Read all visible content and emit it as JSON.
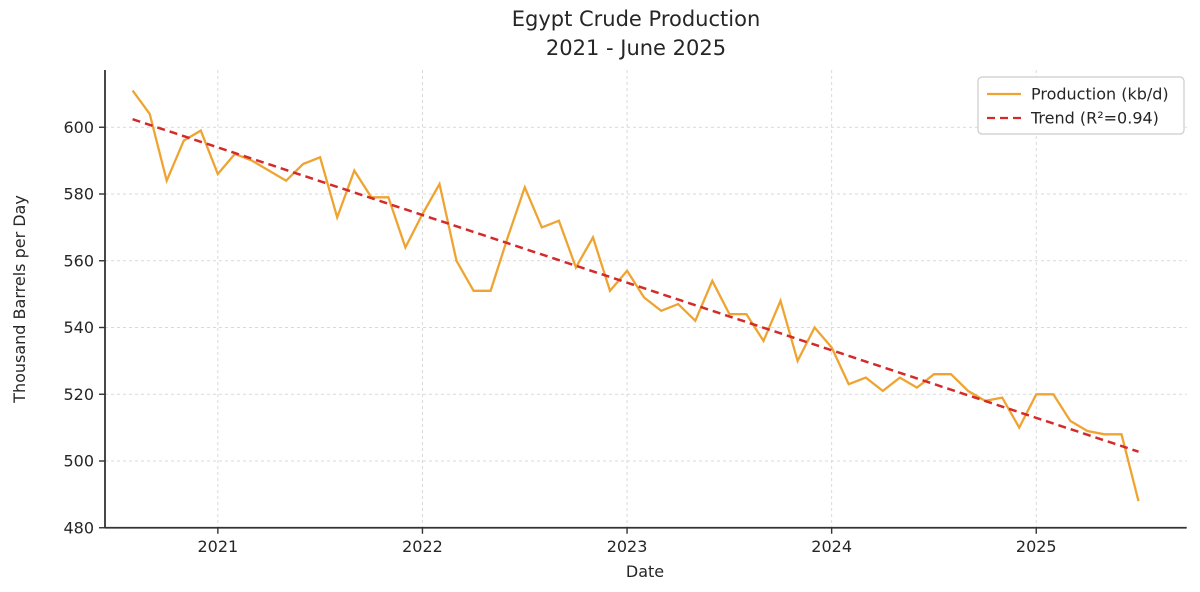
{
  "figure": {
    "title_line1": "Egypt Crude Production",
    "title_line2": "2021 - June 2025",
    "xlabel": "Date",
    "ylabel": "Thousand Barrels per Day"
  },
  "legend": {
    "position": "upper right",
    "items": [
      {
        "label": "Production (kb/d)",
        "style": "solid",
        "color": "#EFA432"
      },
      {
        "label": "Trend (R²=0.94)",
        "style": "dashed",
        "color": "#D42A2A"
      }
    ]
  },
  "colors": {
    "production_line": "#EFA432",
    "trend_line": "#D42A2A",
    "gridline": "#d9d9d9",
    "spine": "#333333",
    "text": "#262626",
    "legend_border": "#cccccc",
    "background": "#ffffff"
  },
  "chart_data": {
    "type": "line",
    "title": "Egypt Crude Production 2021 - June 2025",
    "xlabel": "Date",
    "ylabel": "Thousand Barrels per Day",
    "grid": true,
    "legend_position": "upper right",
    "x_ticks": [
      2021,
      2022,
      2023,
      2024,
      2025
    ],
    "y_ticks": [
      480,
      500,
      520,
      540,
      560,
      580,
      600
    ],
    "ylim": [
      480,
      617
    ],
    "months": [
      "2020-08",
      "2020-09",
      "2020-10",
      "2020-11",
      "2020-12",
      "2021-01",
      "2021-02",
      "2021-03",
      "2021-04",
      "2021-05",
      "2021-06",
      "2021-07",
      "2021-08",
      "2021-09",
      "2021-10",
      "2021-11",
      "2021-12",
      "2022-01",
      "2022-02",
      "2022-03",
      "2022-04",
      "2022-05",
      "2022-06",
      "2022-07",
      "2022-08",
      "2022-09",
      "2022-10",
      "2022-11",
      "2022-12",
      "2023-01",
      "2023-02",
      "2023-03",
      "2023-04",
      "2023-05",
      "2023-06",
      "2023-07",
      "2023-08",
      "2023-09",
      "2023-10",
      "2023-11",
      "2023-12",
      "2024-01",
      "2024-02",
      "2024-03",
      "2024-04",
      "2024-05",
      "2024-06",
      "2024-07",
      "2024-08",
      "2024-09",
      "2024-10",
      "2024-11",
      "2024-12",
      "2025-01",
      "2025-02",
      "2025-03",
      "2025-04",
      "2025-05",
      "2025-06",
      "2025-07"
    ],
    "series": [
      {
        "name": "Production (kb/d)",
        "color": "#EFA432",
        "style": "solid",
        "values": [
          611,
          604,
          584,
          596,
          599,
          586,
          592,
          590,
          587,
          584,
          589,
          591,
          573,
          587,
          579,
          579,
          564,
          574,
          583,
          560,
          551,
          551,
          567,
          582,
          570,
          572,
          558,
          567,
          551,
          557,
          549,
          545,
          547,
          542,
          554,
          544,
          544,
          536,
          548,
          530,
          540,
          534,
          523,
          525,
          521,
          525,
          522,
          526,
          526,
          521,
          518,
          519,
          510,
          520,
          520,
          512,
          509,
          508,
          508,
          488
        ]
      },
      {
        "name": "Trend (R²=0.94)",
        "color": "#D42A2A",
        "style": "dashed",
        "r_squared": 0.94,
        "trend_start": 602.4,
        "trend_end": 502.8
      }
    ]
  }
}
